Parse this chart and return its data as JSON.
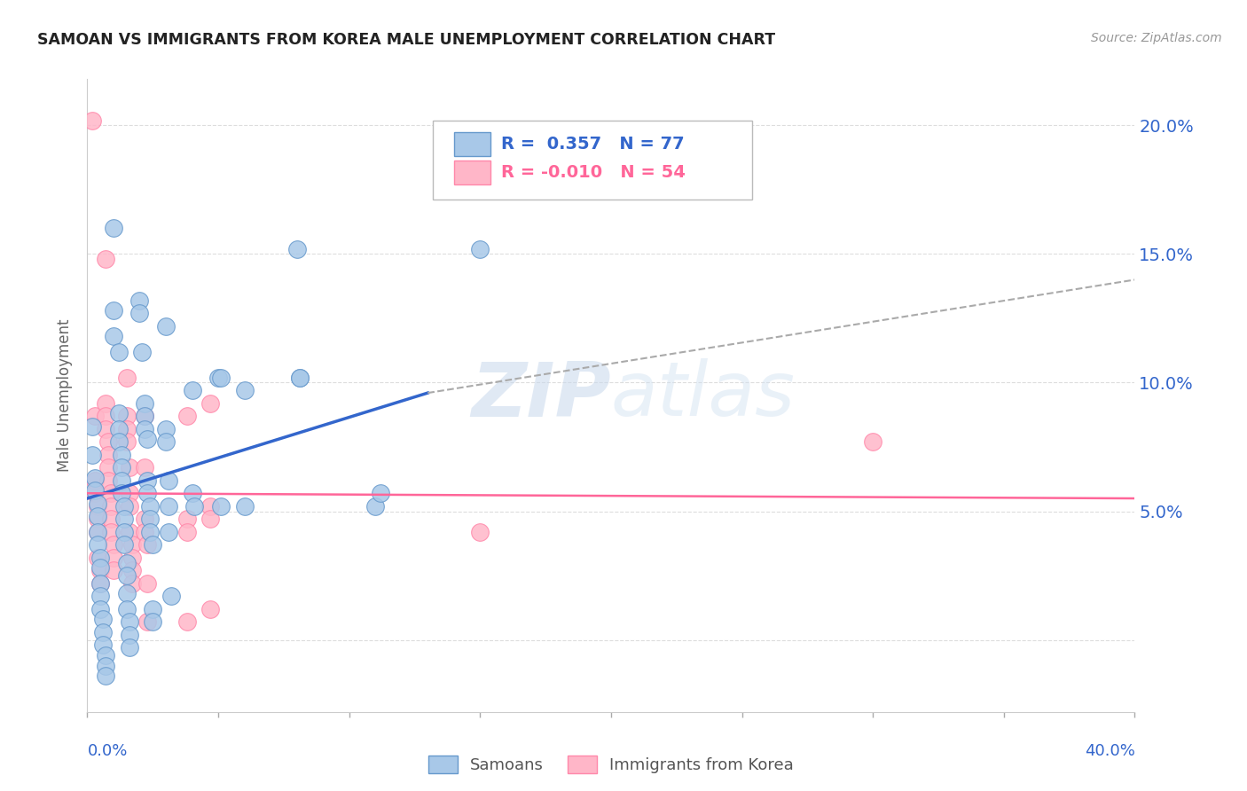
{
  "title": "SAMOAN VS IMMIGRANTS FROM KOREA MALE UNEMPLOYMENT CORRELATION CHART",
  "source": "Source: ZipAtlas.com",
  "ylabel": "Male Unemployment",
  "yticks": [
    0.0,
    0.05,
    0.1,
    0.15,
    0.2
  ],
  "ytick_labels": [
    "",
    "5.0%",
    "10.0%",
    "15.0%",
    "20.0%"
  ],
  "xmin": 0.0,
  "xmax": 0.4,
  "ymin": -0.028,
  "ymax": 0.218,
  "watermark": "ZIPatlas",
  "legend_blue_r": "R =  0.357",
  "legend_blue_n": "N = 77",
  "legend_pink_r": "R = -0.010",
  "legend_pink_n": "N = 54",
  "blue_color": "#A8C8E8",
  "pink_color": "#FFB6C8",
  "blue_edge_color": "#6699CC",
  "pink_edge_color": "#FF88AA",
  "blue_line_color": "#3366CC",
  "pink_line_color": "#FF6699",
  "blue_scatter": [
    [
      0.002,
      0.083
    ],
    [
      0.002,
      0.072
    ],
    [
      0.003,
      0.063
    ],
    [
      0.003,
      0.058
    ],
    [
      0.004,
      0.053
    ],
    [
      0.004,
      0.048
    ],
    [
      0.004,
      0.042
    ],
    [
      0.004,
      0.037
    ],
    [
      0.005,
      0.032
    ],
    [
      0.005,
      0.028
    ],
    [
      0.005,
      0.022
    ],
    [
      0.005,
      0.017
    ],
    [
      0.005,
      0.012
    ],
    [
      0.006,
      0.008
    ],
    [
      0.006,
      0.003
    ],
    [
      0.006,
      -0.002
    ],
    [
      0.007,
      -0.006
    ],
    [
      0.007,
      -0.01
    ],
    [
      0.007,
      -0.014
    ],
    [
      0.01,
      0.16
    ],
    [
      0.01,
      0.128
    ],
    [
      0.01,
      0.118
    ],
    [
      0.012,
      0.112
    ],
    [
      0.012,
      0.088
    ],
    [
      0.012,
      0.082
    ],
    [
      0.012,
      0.077
    ],
    [
      0.013,
      0.072
    ],
    [
      0.013,
      0.067
    ],
    [
      0.013,
      0.062
    ],
    [
      0.013,
      0.057
    ],
    [
      0.014,
      0.052
    ],
    [
      0.014,
      0.047
    ],
    [
      0.014,
      0.042
    ],
    [
      0.014,
      0.037
    ],
    [
      0.015,
      0.03
    ],
    [
      0.015,
      0.025
    ],
    [
      0.015,
      0.018
    ],
    [
      0.015,
      0.012
    ],
    [
      0.016,
      0.007
    ],
    [
      0.016,
      0.002
    ],
    [
      0.016,
      -0.003
    ],
    [
      0.02,
      0.132
    ],
    [
      0.02,
      0.127
    ],
    [
      0.021,
      0.112
    ],
    [
      0.022,
      0.092
    ],
    [
      0.022,
      0.087
    ],
    [
      0.022,
      0.082
    ],
    [
      0.023,
      0.078
    ],
    [
      0.023,
      0.062
    ],
    [
      0.023,
      0.057
    ],
    [
      0.024,
      0.052
    ],
    [
      0.024,
      0.047
    ],
    [
      0.024,
      0.042
    ],
    [
      0.025,
      0.037
    ],
    [
      0.025,
      0.012
    ],
    [
      0.025,
      0.007
    ],
    [
      0.03,
      0.122
    ],
    [
      0.03,
      0.082
    ],
    [
      0.03,
      0.077
    ],
    [
      0.031,
      0.062
    ],
    [
      0.031,
      0.052
    ],
    [
      0.031,
      0.042
    ],
    [
      0.032,
      0.017
    ],
    [
      0.04,
      0.097
    ],
    [
      0.04,
      0.057
    ],
    [
      0.041,
      0.052
    ],
    [
      0.05,
      0.102
    ],
    [
      0.051,
      0.102
    ],
    [
      0.051,
      0.052
    ],
    [
      0.06,
      0.097
    ],
    [
      0.06,
      0.052
    ],
    [
      0.08,
      0.152
    ],
    [
      0.081,
      0.102
    ],
    [
      0.081,
      0.102
    ],
    [
      0.11,
      0.052
    ],
    [
      0.112,
      0.057
    ],
    [
      0.15,
      0.152
    ]
  ],
  "pink_scatter": [
    [
      0.002,
      0.202
    ],
    [
      0.003,
      0.087
    ],
    [
      0.003,
      0.062
    ],
    [
      0.003,
      0.057
    ],
    [
      0.004,
      0.052
    ],
    [
      0.004,
      0.047
    ],
    [
      0.004,
      0.042
    ],
    [
      0.004,
      0.032
    ],
    [
      0.005,
      0.027
    ],
    [
      0.005,
      0.022
    ],
    [
      0.007,
      0.148
    ],
    [
      0.007,
      0.092
    ],
    [
      0.007,
      0.087
    ],
    [
      0.007,
      0.082
    ],
    [
      0.008,
      0.077
    ],
    [
      0.008,
      0.072
    ],
    [
      0.008,
      0.067
    ],
    [
      0.008,
      0.062
    ],
    [
      0.009,
      0.057
    ],
    [
      0.009,
      0.052
    ],
    [
      0.009,
      0.047
    ],
    [
      0.009,
      0.042
    ],
    [
      0.01,
      0.037
    ],
    [
      0.01,
      0.032
    ],
    [
      0.01,
      0.027
    ],
    [
      0.015,
      0.102
    ],
    [
      0.015,
      0.087
    ],
    [
      0.015,
      0.082
    ],
    [
      0.015,
      0.077
    ],
    [
      0.016,
      0.067
    ],
    [
      0.016,
      0.057
    ],
    [
      0.016,
      0.052
    ],
    [
      0.016,
      0.042
    ],
    [
      0.017,
      0.037
    ],
    [
      0.017,
      0.032
    ],
    [
      0.017,
      0.027
    ],
    [
      0.017,
      0.022
    ],
    [
      0.022,
      0.087
    ],
    [
      0.022,
      0.067
    ],
    [
      0.022,
      0.047
    ],
    [
      0.022,
      0.042
    ],
    [
      0.023,
      0.037
    ],
    [
      0.023,
      0.022
    ],
    [
      0.023,
      0.007
    ],
    [
      0.038,
      0.087
    ],
    [
      0.038,
      0.047
    ],
    [
      0.038,
      0.042
    ],
    [
      0.038,
      0.007
    ],
    [
      0.047,
      0.092
    ],
    [
      0.047,
      0.052
    ],
    [
      0.047,
      0.047
    ],
    [
      0.047,
      0.012
    ],
    [
      0.15,
      0.042
    ],
    [
      0.3,
      0.077
    ]
  ],
  "blue_trendline_solid": [
    [
      0.0,
      0.055
    ],
    [
      0.13,
      0.096
    ]
  ],
  "blue_trendline_dashed": [
    [
      0.13,
      0.096
    ],
    [
      0.4,
      0.14
    ]
  ],
  "pink_trendline": [
    [
      0.0,
      0.057
    ],
    [
      0.4,
      0.055
    ]
  ]
}
